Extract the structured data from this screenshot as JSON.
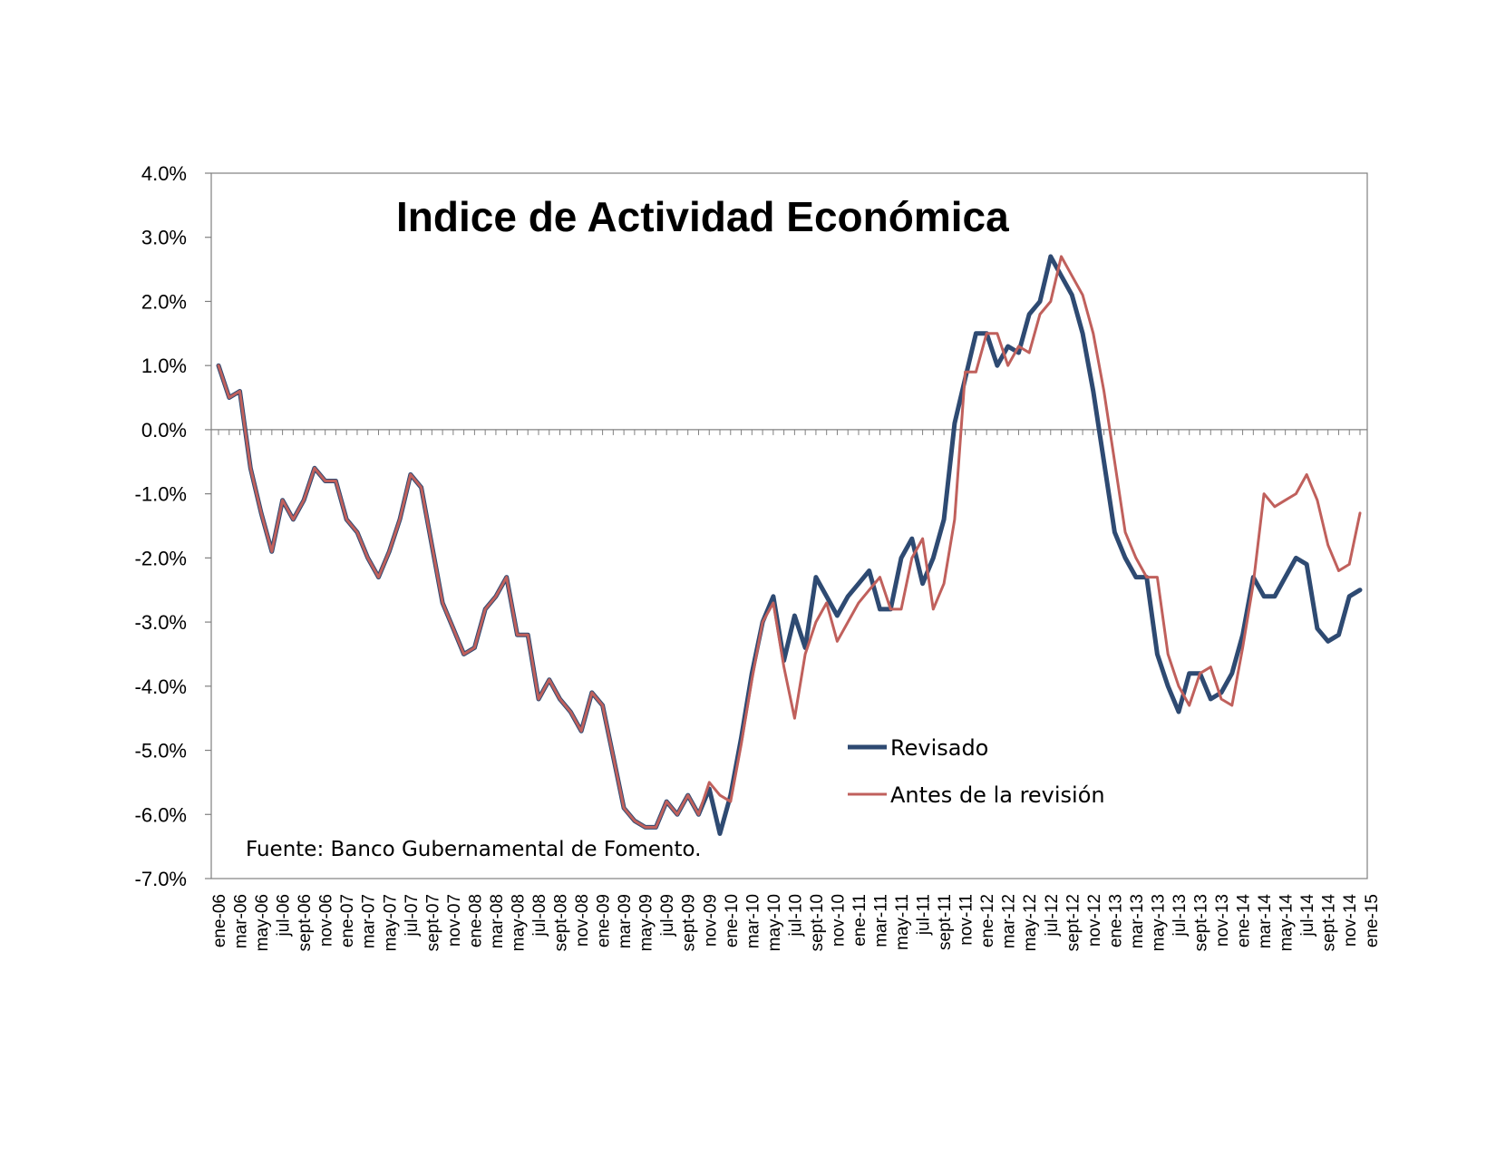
{
  "chart_data": {
    "type": "line",
    "title": "Indice de Actividad Económica",
    "source_note": "Fuente: Banco Gubernamental de Fomento.",
    "xlabel": "",
    "ylabel": "",
    "ylim": [
      -0.07,
      0.04
    ],
    "y_ticks": [
      "4.0%",
      "3.0%",
      "2.0%",
      "1.0%",
      "0.0%",
      "-1.0%",
      "-2.0%",
      "-3.0%",
      "-4.0%",
      "-5.0%",
      "-6.0%",
      "-7.0%"
    ],
    "y_tick_values": [
      0.04,
      0.03,
      0.02,
      0.01,
      0.0,
      -0.01,
      -0.02,
      -0.03,
      -0.04,
      -0.05,
      -0.06,
      -0.07
    ],
    "x_tick_labels": [
      "ene-06",
      "mar-06",
      "may-06",
      "jul-06",
      "sept-06",
      "nov-06",
      "ene-07",
      "mar-07",
      "may-07",
      "jul-07",
      "sept-07",
      "nov-07",
      "ene-08",
      "mar-08",
      "may-08",
      "jul-08",
      "sept-08",
      "nov-08",
      "ene-09",
      "mar-09",
      "may-09",
      "jul-09",
      "sept-09",
      "nov-09",
      "ene-10",
      "mar-10",
      "may-10",
      "jul-10",
      "sept-10",
      "nov-10",
      "ene-11",
      "mar-11",
      "may-11",
      "jul-11",
      "sept-11",
      "nov-11",
      "ene-12",
      "mar-12",
      "may-12",
      "jul-12",
      "sept-12",
      "nov-12",
      "ene-13",
      "mar-13",
      "may-13",
      "jul-13",
      "sept-13",
      "nov-13",
      "ene-14",
      "mar-14",
      "may-14",
      "jul-14",
      "sept-14",
      "nov-14",
      "ene-15"
    ],
    "legend_position": "center-right",
    "grid": false,
    "series": [
      {
        "name": "Revisado",
        "color": "#2e4a72",
        "values": [
          0.01,
          0.005,
          0.006,
          -0.006,
          -0.013,
          -0.019,
          -0.011,
          -0.014,
          -0.011,
          -0.006,
          -0.008,
          -0.008,
          -0.014,
          -0.016,
          -0.02,
          -0.023,
          -0.019,
          -0.014,
          -0.007,
          -0.009,
          -0.018,
          -0.027,
          -0.031,
          -0.035,
          -0.034,
          -0.028,
          -0.026,
          -0.023,
          -0.032,
          -0.032,
          -0.042,
          -0.039,
          -0.042,
          -0.044,
          -0.047,
          -0.041,
          -0.043,
          -0.051,
          -0.059,
          -0.061,
          -0.062,
          -0.062,
          -0.058,
          -0.06,
          -0.057,
          -0.06,
          -0.056,
          -0.063,
          -0.057,
          -0.048,
          -0.038,
          -0.03,
          -0.026,
          -0.036,
          -0.029,
          -0.034,
          -0.023,
          -0.026,
          -0.029,
          -0.026,
          -0.024,
          -0.022,
          -0.028,
          -0.028,
          -0.02,
          -0.017,
          -0.024,
          -0.02,
          -0.014,
          0.001,
          0.008,
          0.015,
          0.015,
          0.01,
          0.013,
          0.012,
          0.018,
          0.02,
          0.027,
          0.024,
          0.021,
          0.015,
          0.006,
          -0.005,
          -0.016,
          -0.02,
          -0.023,
          -0.023,
          -0.035,
          -0.04,
          -0.044,
          -0.038,
          -0.038,
          -0.042,
          -0.041,
          -0.038,
          -0.032,
          -0.023,
          -0.026,
          -0.026,
          -0.023,
          -0.02,
          -0.021,
          -0.031,
          -0.033,
          -0.032,
          -0.026,
          -0.025
        ]
      },
      {
        "name": "Antes de la revisión",
        "color": "#c0605c",
        "values": [
          0.01,
          0.005,
          0.006,
          -0.006,
          -0.013,
          -0.019,
          -0.011,
          -0.014,
          -0.011,
          -0.006,
          -0.008,
          -0.008,
          -0.014,
          -0.016,
          -0.02,
          -0.023,
          -0.019,
          -0.014,
          -0.007,
          -0.009,
          -0.018,
          -0.027,
          -0.031,
          -0.035,
          -0.034,
          -0.028,
          -0.026,
          -0.023,
          -0.032,
          -0.032,
          -0.042,
          -0.039,
          -0.042,
          -0.044,
          -0.047,
          -0.041,
          -0.043,
          -0.051,
          -0.059,
          -0.061,
          -0.062,
          -0.062,
          -0.058,
          -0.06,
          -0.057,
          -0.06,
          -0.055,
          -0.057,
          -0.058,
          -0.049,
          -0.039,
          -0.03,
          -0.027,
          -0.037,
          -0.045,
          -0.035,
          -0.03,
          -0.027,
          -0.033,
          -0.03,
          -0.027,
          -0.025,
          -0.023,
          -0.028,
          -0.028,
          -0.02,
          -0.017,
          -0.028,
          -0.024,
          -0.014,
          0.009,
          0.009,
          0.015,
          0.015,
          0.01,
          0.013,
          0.012,
          0.018,
          0.02,
          0.027,
          0.024,
          0.021,
          0.015,
          0.006,
          -0.005,
          -0.016,
          -0.02,
          -0.023,
          -0.023,
          -0.035,
          -0.04,
          -0.043,
          -0.038,
          -0.037,
          -0.042,
          -0.043,
          -0.034,
          -0.024,
          -0.01,
          -0.012,
          -0.011,
          -0.01,
          -0.007,
          -0.011,
          -0.018,
          -0.022,
          -0.021,
          -0.013
        ]
      }
    ]
  }
}
